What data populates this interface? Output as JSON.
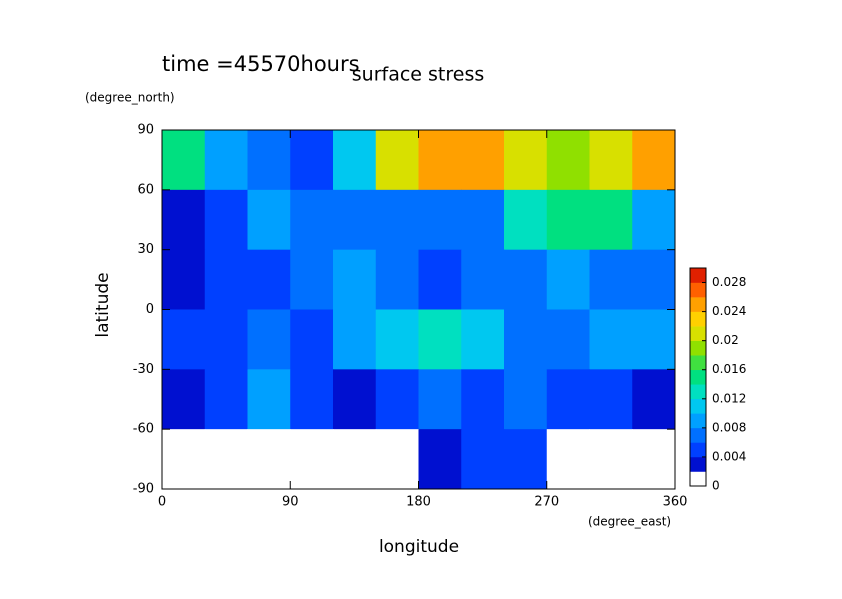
{
  "chart_data": {
    "type": "contour",
    "title": "surface stress",
    "subtitle": "time =45570hours",
    "x_label": "longitude",
    "x_unit": "(degree_east)",
    "y_label": "latitude",
    "y_unit": "(degree_north)",
    "xlim": [
      0,
      360
    ],
    "xticks": [
      0,
      90,
      180,
      270,
      360
    ],
    "ylim": [
      -90,
      90
    ],
    "yticks": [
      -90,
      -60,
      -30,
      0,
      30,
      60,
      90
    ],
    "lon_edges": [
      0,
      30,
      60,
      90,
      120,
      150,
      180,
      210,
      240,
      270,
      300,
      330,
      360
    ],
    "lat_edges": [
      90,
      60,
      30,
      0,
      -30,
      -60,
      -90
    ],
    "z": [
      [
        0.014,
        0.008,
        0.006,
        0.004,
        0.01,
        0.02,
        0.024,
        0.024,
        0.02,
        0.018,
        0.02,
        0.024
      ],
      [
        0.002,
        0.004,
        0.008,
        0.006,
        0.006,
        0.006,
        0.006,
        0.006,
        0.012,
        0.014,
        0.014,
        0.008
      ],
      [
        0.002,
        0.004,
        0.004,
        0.006,
        0.008,
        0.006,
        0.004,
        0.006,
        0.006,
        0.008,
        0.006,
        0.006
      ],
      [
        0.004,
        0.004,
        0.006,
        0.004,
        0.008,
        0.01,
        0.012,
        0.01,
        0.006,
        0.006,
        0.008,
        0.008
      ],
      [
        0.002,
        0.004,
        0.008,
        0.004,
        0.002,
        0.004,
        0.006,
        0.004,
        0.006,
        0.004,
        0.004,
        0.002
      ],
      [
        0,
        0,
        0,
        0,
        0,
        0,
        0.002,
        0.004,
        0.004,
        0,
        0,
        0
      ]
    ],
    "levels": [
      0,
      0.002,
      0.004,
      0.006,
      0.008,
      0.01,
      0.012,
      0.014,
      0.016,
      0.018,
      0.02,
      0.022,
      0.024,
      0.026,
      0.028,
      0.03
    ],
    "colors": [
      "#ffffff",
      "#0010d0",
      "#0040ff",
      "#0070ff",
      "#00a0ff",
      "#00c8f0",
      "#00e0c0",
      "#00e080",
      "#40e040",
      "#90e000",
      "#d8e000",
      "#ffd000",
      "#ffa000",
      "#ff6000",
      "#e02000"
    ],
    "cbar_lim": [
      0,
      0.03
    ],
    "cbar_ticks": [
      0,
      0.004,
      0.008,
      0.012,
      0.016,
      0.02,
      0.024,
      0.028
    ]
  }
}
